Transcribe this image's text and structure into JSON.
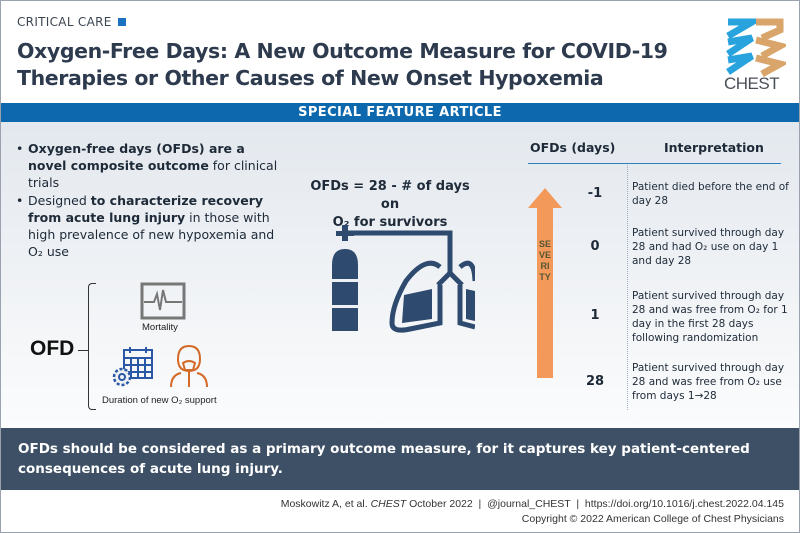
{
  "header": {
    "kicker": "CRITICAL CARE",
    "title_line1": "Oxygen-Free Days: A New Outcome Measure for COVID-19",
    "title_line2": "Therapies or Other Causes of New Onset Hypoxemia",
    "logo_text": "CHEST"
  },
  "banner": "SPECIAL FEATURE ARTICLE",
  "bullets": [
    {
      "bold": "Oxygen-free days (OFDs) are a novel composite outcome",
      "rest": " for clinical trials"
    },
    {
      "pre": "Designed ",
      "bold": "to characterize recovery from acute lung injury",
      "rest": " in those with high prevalence of new hypoxemia and O₂ use"
    }
  ],
  "ofd": {
    "label": "OFD",
    "mortality": "Mortality",
    "duration": "Duration of new O₂ support"
  },
  "formula": {
    "line1": "OFDs = 28 - # of days on",
    "line2": "O₂ for survivors"
  },
  "table": {
    "headers": [
      "OFDs (days)",
      "Interpretation"
    ],
    "severity_label": "SEVERITY",
    "rows": [
      {
        "value": "-1",
        "text": "Patient died before the end of day 28"
      },
      {
        "value": "0",
        "text": "Patient survived through day 28 and had O₂ use on day 1 and day 28"
      },
      {
        "value": "1",
        "text": "Patient survived through day 28 and was free from O₂ for 1 day in the first 28 days following randomization"
      },
      {
        "value": "28",
        "text": "Patient survived through day 28 and was free from O₂ use from days 1→28"
      }
    ]
  },
  "takeaway": "OFDs should be considered as a primary outcome measure, for it captures key patient-centered consequences of acute lung injury.",
  "citation": {
    "authors": "Moskowitz A, et al. ",
    "journal": "CHEST",
    "rest": " October 2022  |  @journal_CHEST  |  https://doi.org/10.1016/j.chest.2022.04.145",
    "copyright": "Copyright © 2022 American College of Chest Physicians"
  },
  "colors": {
    "blue": "#0d68ad",
    "navy": "#2e4a6e",
    "orange": "#f39a5b",
    "band": "#3d5066"
  }
}
